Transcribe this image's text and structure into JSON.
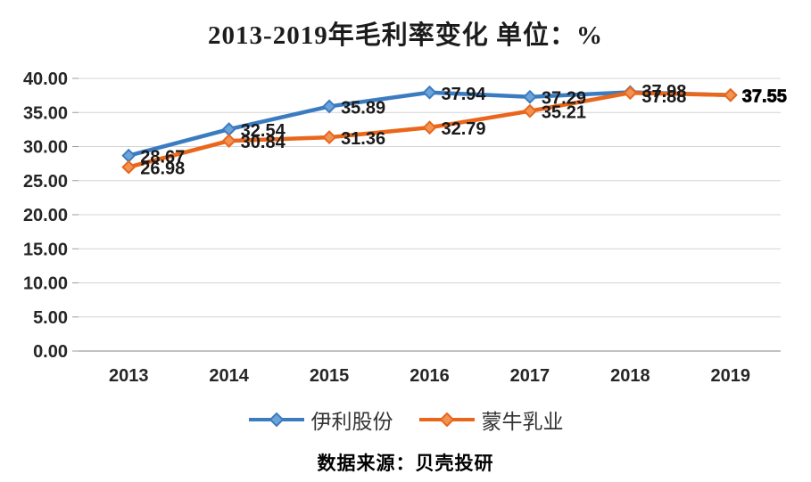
{
  "title": "2013-2019年毛利率变化 单位：%",
  "source_note": "数据来源：贝壳投研",
  "legend": {
    "items": [
      {
        "label": "伊利股份",
        "color": "#3b7cc1",
        "marker_fill": "#6ea3d8"
      },
      {
        "label": "蒙牛乳业",
        "color": "#e9661b",
        "marker_fill": "#f09353"
      }
    ]
  },
  "chart_data": {
    "type": "line",
    "title": "2013-2019年毛利率变化 单位：%",
    "categories": [
      "2013",
      "2014",
      "2015",
      "2016",
      "2017",
      "2018",
      "2019"
    ],
    "series": [
      {
        "name": "伊利股份",
        "color": "#3b7cc1",
        "marker": "diamond",
        "marker_fill": "#6ea3d8",
        "values": [
          28.67,
          32.54,
          35.89,
          37.94,
          37.29,
          37.98,
          37.55
        ],
        "labels": [
          "28.67",
          "32.54",
          "35.89",
          "37.94",
          "37.29",
          "37.98",
          ""
        ],
        "bold_label_indices": []
      },
      {
        "name": "蒙牛乳业",
        "color": "#e9661b",
        "marker": "diamond",
        "marker_fill": "#f09353",
        "values": [
          26.98,
          30.84,
          31.36,
          32.79,
          35.21,
          37.88,
          37.55
        ],
        "labels": [
          "26.98",
          "30.84",
          "31.36",
          "32.79",
          "35.21",
          "37.88",
          "37.55"
        ],
        "bold_label_indices": [
          6
        ]
      }
    ],
    "ylim": [
      0,
      40
    ],
    "yticks": [
      {
        "value": 40,
        "label": "40.00"
      },
      {
        "value": 35,
        "label": "35.00"
      },
      {
        "value": 30,
        "label": "30.00"
      },
      {
        "value": 25,
        "label": "25.00"
      },
      {
        "value": 20,
        "label": "20.00"
      },
      {
        "value": 15,
        "label": "15.00"
      },
      {
        "value": 10,
        "label": "10.00"
      },
      {
        "value": 5,
        "label": "5.00"
      },
      {
        "value": 0,
        "label": "0.00"
      }
    ],
    "grid": true,
    "legend_position": "bottom"
  },
  "colors": {
    "grid": "#d4d4d4",
    "axis": "#9c9c9c",
    "tick_text": "#262626",
    "data_label": "#1a1a1a"
  }
}
